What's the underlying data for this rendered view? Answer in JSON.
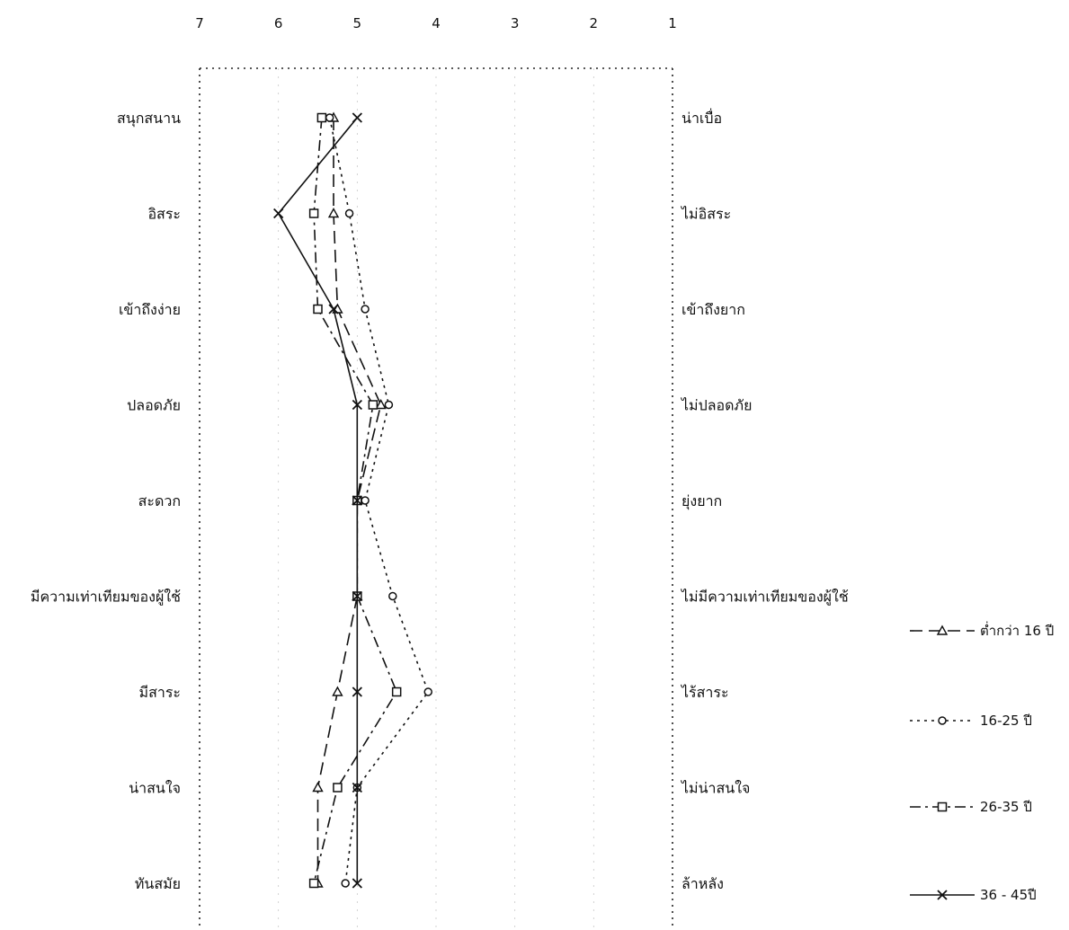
{
  "chart_data": {
    "type": "line",
    "orientation": "vertical-semantic-differential",
    "x_ticks": [
      7,
      6,
      5,
      4,
      3,
      2,
      1
    ],
    "xlim": [
      7,
      1
    ],
    "left_labels": [
      "สนุกสนาน",
      "อิสระ",
      "เข้าถึงง่าย",
      "ปลอดภัย",
      "สะดวก",
      "มีความเท่าเทียมของผู้ใช้",
      "มีสาระ",
      "น่าสนใจ",
      "ทันสมัย"
    ],
    "right_labels": [
      "น่าเบื่อ",
      "ไม่อิสระ",
      "เข้าถึงยาก",
      "ไม่ปลอดภัย",
      "ยุ่งยาก",
      "ไม่มีความเท่าเทียมของผู้ใช้",
      "ไร้สาระ",
      "ไม่น่าสนใจ",
      "ล้าหลัง"
    ],
    "grid": true,
    "legend_position": "right",
    "series": [
      {
        "name": "ต่ำกว่า 16 ปี",
        "marker": "triangle",
        "dash": "dash",
        "color": "#111111",
        "values": [
          5.3,
          5.3,
          5.25,
          4.7,
          5.0,
          5.0,
          5.25,
          5.5,
          5.5
        ]
      },
      {
        "name": "16-25 ปี",
        "marker": "circle",
        "dash": "dot",
        "color": "#111111",
        "values": [
          5.35,
          5.1,
          4.9,
          4.6,
          4.9,
          4.55,
          4.1,
          5.0,
          5.15
        ]
      },
      {
        "name": "26-35 ปี",
        "marker": "square",
        "dash": "dashdot",
        "color": "#111111",
        "values": [
          5.45,
          5.55,
          5.5,
          4.8,
          5.0,
          5.0,
          4.5,
          5.25,
          5.55
        ]
      },
      {
        "name": "36 - 45ปี",
        "marker": "x",
        "dash": "solid",
        "color": "#111111",
        "values": [
          5.0,
          6.0,
          5.3,
          5.0,
          5.0,
          5.0,
          5.0,
          5.0,
          5.0
        ]
      }
    ]
  }
}
